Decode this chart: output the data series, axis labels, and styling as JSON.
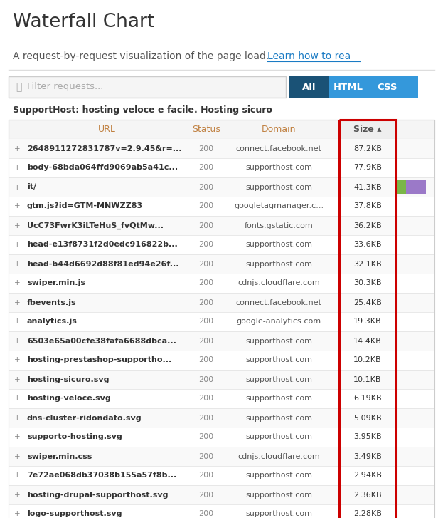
{
  "title": "Waterfall Chart",
  "subtitle": "A request-by-request visualization of the page load.",
  "subtitle_link": "Learn how to rea",
  "filter_placeholder": "Filter requests...",
  "tabs": [
    "All",
    "HTML",
    "CSS"
  ],
  "active_tab": "All",
  "section_label": "SupportHost: hosting veloce e facile. Hosting sicuro",
  "columns": [
    "URL",
    "Status",
    "Domain",
    "Size ▴"
  ],
  "rows": [
    {
      "url": "2648911272831787v=2.9.45&r=...",
      "status": "200",
      "domain": "connect.facebook.net",
      "size": "87.2KB"
    },
    {
      "url": "body-68bda064ffd9069ab5a41c...",
      "status": "200",
      "domain": "supporthost.com",
      "size": "77.9KB"
    },
    {
      "url": "it/",
      "status": "200",
      "domain": "supporthost.com",
      "size": "41.3KB"
    },
    {
      "url": "gtm.js?id=GTM-MNWZZ83",
      "status": "200",
      "domain": "googletagmanager.c...",
      "size": "37.8KB"
    },
    {
      "url": "UcC73FwrK3iLTeHuS_fvQtMw...",
      "status": "200",
      "domain": "fonts.gstatic.com",
      "size": "36.2KB"
    },
    {
      "url": "head-e13f8731f2d0edc916822b...",
      "status": "200",
      "domain": "supporthost.com",
      "size": "33.6KB"
    },
    {
      "url": "head-b44d6692d88f81ed94e26f...",
      "status": "200",
      "domain": "supporthost.com",
      "size": "32.1KB"
    },
    {
      "url": "swiper.min.js",
      "status": "200",
      "domain": "cdnjs.cloudflare.com",
      "size": "30.3KB"
    },
    {
      "url": "fbevents.js",
      "status": "200",
      "domain": "connect.facebook.net",
      "size": "25.4KB"
    },
    {
      "url": "analytics.js",
      "status": "200",
      "domain": "google-analytics.com",
      "size": "19.3KB"
    },
    {
      "url": "6503e65a00cfe38fafa6688dbca...",
      "status": "200",
      "domain": "supporthost.com",
      "size": "14.4KB"
    },
    {
      "url": "hosting-prestashop-supportho...",
      "status": "200",
      "domain": "supporthost.com",
      "size": "10.2KB"
    },
    {
      "url": "hosting-sicuro.svg",
      "status": "200",
      "domain": "supporthost.com",
      "size": "10.1KB"
    },
    {
      "url": "hosting-veloce.svg",
      "status": "200",
      "domain": "supporthost.com",
      "size": "6.19KB"
    },
    {
      "url": "dns-cluster-ridondato.svg",
      "status": "200",
      "domain": "supporthost.com",
      "size": "5.09KB"
    },
    {
      "url": "supporto-hosting.svg",
      "status": "200",
      "domain": "supporthost.com",
      "size": "3.95KB"
    },
    {
      "url": "swiper.min.css",
      "status": "200",
      "domain": "cdnjs.cloudflare.com",
      "size": "3.49KB"
    },
    {
      "url": "7e72ae068db37038b155a57f8b...",
      "status": "200",
      "domain": "supporthost.com",
      "size": "2.94KB"
    },
    {
      "url": "hosting-drupal-supporthost.svg",
      "status": "200",
      "domain": "supporthost.com",
      "size": "2.36KB"
    },
    {
      "url": "logo-supporthost.svg",
      "status": "200",
      "domain": "supporthost.com",
      "size": "2.28KB"
    }
  ],
  "highlight_row": 2,
  "highlight_bar_colors": [
    "#7ab648",
    "#9b79c8"
  ],
  "bg_color": "#ffffff",
  "header_color": "#f0f0f0",
  "border_color": "#cccccc",
  "red_box_color": "#cc0000",
  "text_color": "#444444",
  "bold_text_color": "#333333",
  "status_color": "#888888",
  "domain_color": "#555555",
  "title_color": "#333333",
  "subtitle_color": "#555555",
  "link_color": "#1a7bc4",
  "tab_all_bg": "#1a5276",
  "tab_other_bg": "#3498db",
  "tab_fg": "#ffffff",
  "filter_bg": "#f5f5f5",
  "filter_border": "#cccccc",
  "size_col_bg": "#eeeeee"
}
